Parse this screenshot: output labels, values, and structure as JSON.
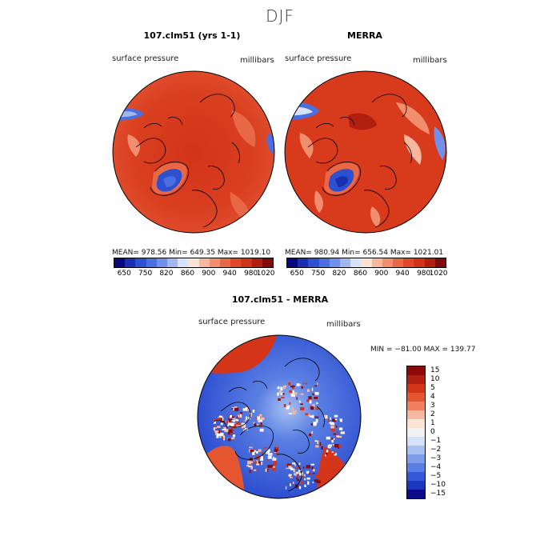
{
  "figure": {
    "title": "DJF"
  },
  "panels": [
    {
      "title": "107.clm51 (yrs 1-1)",
      "variable": "surface pressure",
      "units": "millibars",
      "stats": "MEAN= 978.56   Min= 649.35   Max= 1019.10"
    },
    {
      "title": "MERRA",
      "variable": "surface pressure",
      "units": "millibars",
      "stats": "MEAN= 980.94   Min= 656.54   Max= 1021.01"
    }
  ],
  "diff_panel": {
    "title": "107.clm51 - MERRA",
    "variable": "surface pressure",
    "units": "millibars",
    "minmax": "MIN = −81.00 MAX = 139.77"
  },
  "chart_data": [
    {
      "type": "heatmap",
      "title": "107.clm51 (yrs 1-1)",
      "variable": "surface pressure",
      "units": "millibars",
      "projection": "north polar stereographic",
      "mean": 978.56,
      "min": 649.35,
      "max": 1019.1,
      "colorbar_levels": [
        650,
        700,
        750,
        800,
        820,
        840,
        860,
        880,
        900,
        920,
        940,
        960,
        980,
        1000,
        1020
      ],
      "colorbar_labels": [
        "650",
        "750",
        "820",
        "860",
        "900",
        "940",
        "980",
        "1020"
      ]
    },
    {
      "type": "heatmap",
      "title": "MERRA",
      "variable": "surface pressure",
      "units": "millibars",
      "projection": "north polar stereographic",
      "mean": 980.94,
      "min": 656.54,
      "max": 1021.01,
      "colorbar_levels": [
        650,
        700,
        750,
        800,
        820,
        840,
        860,
        880,
        900,
        920,
        940,
        960,
        980,
        1000,
        1020
      ],
      "colorbar_labels": [
        "650",
        "750",
        "820",
        "860",
        "900",
        "940",
        "980",
        "1020"
      ]
    },
    {
      "type": "heatmap",
      "title": "107.clm51 - MERRA",
      "variable": "surface pressure",
      "units": "millibars",
      "projection": "north polar stereographic",
      "min": -81.0,
      "max": 139.77,
      "colorbar_levels": [
        "15",
        "10",
        "5",
        "4",
        "3",
        "2",
        "1",
        "0",
        "−1",
        "−2",
        "−3",
        "−4",
        "−5",
        "−10",
        "−15"
      ]
    }
  ],
  "colors": {
    "top_bar": [
      "#08087a",
      "#1a2fb0",
      "#2e4fd0",
      "#4a6fe0",
      "#7090ea",
      "#a0b8f2",
      "#d8e2f8",
      "#fbe2d4",
      "#f6b79c",
      "#f08e6e",
      "#e86846",
      "#e0482a",
      "#d23318",
      "#b01e10",
      "#800a08"
    ],
    "diff_bar": [
      "#8b0a06",
      "#b01e10",
      "#d43418",
      "#e45530",
      "#f08060",
      "#f5b8a0",
      "#fbe3d6",
      "#f2f2f2",
      "#d6e2f8",
      "#a8c0f2",
      "#7d9cea",
      "#5a7fe3",
      "#3459d8",
      "#1b36c0",
      "#0b0a8a"
    ]
  }
}
